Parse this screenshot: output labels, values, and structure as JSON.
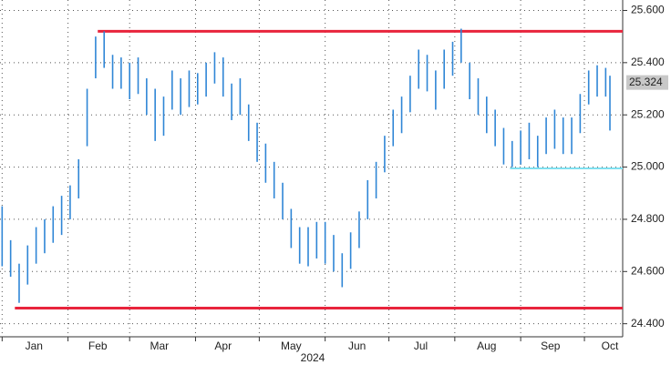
{
  "chart_data": {
    "type": "hilo",
    "x_label": "2024",
    "xlim": [
      0,
      293
    ],
    "xticks": [
      {
        "value": 16,
        "label": "Jan"
      },
      {
        "value": 46,
        "label": "Feb"
      },
      {
        "value": 75,
        "label": "Mar"
      },
      {
        "value": 105,
        "label": "Apr"
      },
      {
        "value": 137,
        "label": "May"
      },
      {
        "value": 168,
        "label": "Jun"
      },
      {
        "value": 198,
        "label": "Jul"
      },
      {
        "value": 229,
        "label": "Aug"
      },
      {
        "value": 259,
        "label": "Sep"
      },
      {
        "value": 287,
        "label": "Oct"
      }
    ],
    "xgrid": [
      1,
      32,
      61,
      92,
      122,
      153,
      183,
      214,
      245,
      275
    ],
    "ylim": [
      24.35,
      25.64
    ],
    "yticks": [
      {
        "value": 24.4,
        "label": "24.400"
      },
      {
        "value": 24.6,
        "label": "24.600"
      },
      {
        "value": 24.8,
        "label": "24.800"
      },
      {
        "value": 25.0,
        "label": "25.000"
      },
      {
        "value": 25.2,
        "label": "25.200"
      },
      {
        "value": 25.4,
        "label": "25.400"
      },
      {
        "value": 25.6,
        "label": "25.600"
      }
    ],
    "grid": true,
    "color": "#2f86d6",
    "x": [
      1,
      5,
      9,
      13,
      17,
      21,
      25,
      29,
      33,
      37,
      41,
      45,
      49,
      53,
      57,
      61,
      65,
      69,
      73,
      77,
      81,
      85,
      89,
      93,
      97,
      101,
      105,
      109,
      113,
      117,
      121,
      125,
      129,
      133,
      137,
      141,
      145,
      149,
      153,
      157,
      161,
      165,
      169,
      173,
      177,
      181,
      185,
      189,
      193,
      197,
      201,
      205,
      209,
      213,
      217,
      221,
      225,
      229,
      233,
      237,
      241,
      245,
      249,
      253,
      257,
      261,
      265,
      269,
      273,
      277,
      281,
      285,
      287
    ],
    "low": [
      24.62,
      24.58,
      24.48,
      24.55,
      24.63,
      24.67,
      24.71,
      24.74,
      24.8,
      24.88,
      25.08,
      25.34,
      25.38,
      25.3,
      25.3,
      25.26,
      25.28,
      25.2,
      25.1,
      25.12,
      25.22,
      25.2,
      25.23,
      25.24,
      25.27,
      25.32,
      25.27,
      25.18,
      25.2,
      25.1,
      25.02,
      24.94,
      24.88,
      24.8,
      24.69,
      24.63,
      24.62,
      24.65,
      24.63,
      24.6,
      24.54,
      24.61,
      24.69,
      24.8,
      24.88,
      24.98,
      25.08,
      25.13,
      25.21,
      25.3,
      25.29,
      25.22,
      25.3,
      25.35,
      25.4,
      25.26,
      25.2,
      25.13,
      25.08,
      25.01,
      25.0,
      25.01,
      25.03,
      25.0,
      25.05,
      25.07,
      25.05,
      25.05,
      25.13,
      25.24,
      25.27,
      25.27,
      25.14
    ],
    "high": [
      24.85,
      24.72,
      24.63,
      24.7,
      24.77,
      24.8,
      24.85,
      24.89,
      24.93,
      25.03,
      25.3,
      25.5,
      25.52,
      25.43,
      25.42,
      25.4,
      25.42,
      25.34,
      25.3,
      25.27,
      25.37,
      25.34,
      25.37,
      25.36,
      25.4,
      25.44,
      25.42,
      25.32,
      25.34,
      25.24,
      25.17,
      25.09,
      25.02,
      24.94,
      24.84,
      24.77,
      24.77,
      24.79,
      24.79,
      24.74,
      24.67,
      24.75,
      24.83,
      24.95,
      25.02,
      25.12,
      25.22,
      25.27,
      25.35,
      25.45,
      25.43,
      25.37,
      25.45,
      25.48,
      25.53,
      25.4,
      25.34,
      25.27,
      25.22,
      25.15,
      25.1,
      25.14,
      25.17,
      25.12,
      25.19,
      25.22,
      25.19,
      25.19,
      25.28,
      25.37,
      25.39,
      25.38,
      25.35
    ],
    "hlines": [
      {
        "value": 25.52,
        "start": 46,
        "color": "#e8243c"
      },
      {
        "value": 24.46,
        "start": 7,
        "color": "#e8243c"
      },
      {
        "value": 24.995,
        "start": 240,
        "color": "#7fe0f0"
      }
    ],
    "last_value": 25.324
  }
}
